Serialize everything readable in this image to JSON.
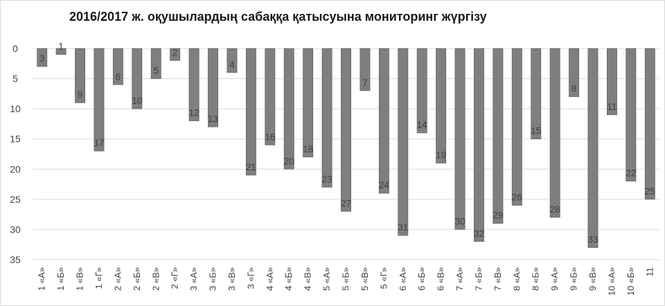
{
  "chart_data": {
    "type": "bar",
    "title": "2016/2017 ж. оқушылардың сабаққа қатысуына мониторинг жүргізу",
    "xlabel": "",
    "ylabel": "",
    "ylim": [
      0,
      35
    ],
    "y_inverted": true,
    "y_ticks": [
      0,
      5,
      10,
      15,
      20,
      25,
      30,
      35
    ],
    "grid": true,
    "bar_color": "#7f7f7f",
    "categories": [
      "1 «А»",
      "1 «Б»",
      "1 «В»",
      "1 «Г»",
      "2 «А»",
      "2 «Б»",
      "2 «В»",
      "2 «Г»",
      "3 «А»",
      "3 «Б»",
      "3 «В»",
      "3 «Г»",
      "4 «А»",
      "4 «Б»",
      "4 «В»",
      "5 «А»",
      "5 «Б»",
      "5 «В»",
      "5 «Г»",
      "6 «А»",
      "6 «Б»",
      "6 «В»",
      "7 «А»",
      "7 «Б»",
      "7 «В»",
      "8 «А»",
      "8 «Б»",
      "9 «А»",
      "9 «Б»",
      "9 «В»",
      "10 «А»",
      "10 «Б»",
      "11"
    ],
    "values": [
      3,
      1,
      9,
      17,
      6,
      10,
      5,
      2,
      12,
      13,
      4,
      21,
      16,
      20,
      18,
      23,
      27,
      7,
      24,
      31,
      14,
      19,
      30,
      32,
      29,
      26,
      15,
      28,
      8,
      33,
      11,
      22,
      25
    ]
  }
}
